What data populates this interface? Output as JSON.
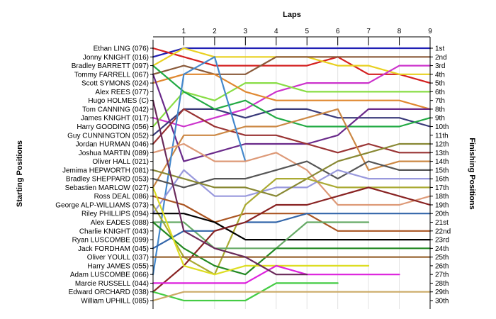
{
  "chart_data": {
    "type": "line",
    "title": "",
    "xlabel": "Laps",
    "ylabel_left": "Starting Positions",
    "ylabel_right": "Finishing Positions",
    "x": [
      0,
      1,
      2,
      3,
      4,
      5,
      6,
      7,
      8,
      9
    ],
    "x_tick_labels": [
      "1",
      "2",
      "3",
      "4",
      "5",
      "6",
      "7",
      "8",
      "9"
    ],
    "ylim": [
      1,
      30
    ],
    "y_inverted": true,
    "grid": true,
    "starting_labels": [
      "Ethan LING (076)",
      "Jonny KNIGHT (016)",
      "Bradley BARRETT (097)",
      "Tommy FARRELL (067)",
      "Scott SYMONS (024)",
      "Alex REES (077)",
      "Hugo HOLMES (C)",
      "Tom CANNING (042)",
      "James KNIGHT (017)",
      "Harry GOODING (056)",
      "Guy CUNNINGTON (052)",
      "Jordan HURMAN (046)",
      "Joshua MARTIN (089)",
      "Oliver HALL (021)",
      "Jemima HEPWORTH (081)",
      "Bradley SHEPPARD (053)",
      "Sebastien MARLOW (027)",
      "Ross DEAL (086)",
      "George ALP-WILLIAMS (073)",
      "Riley PHILLIPS (094)",
      "Alex EADES (088)",
      "Charlie KNIGHT (043)",
      "Ryan LUSCOMBE (099)",
      "Jack FORDHAM (045)",
      "Oliver YOULL (037)",
      "Harry JAMES (055)",
      "Adam LUSCOMBE (066)",
      "Marcie RUSSELL (044)",
      "Edward ORCHARD (038)",
      "William UPHILL (085)"
    ],
    "finishing_labels": [
      "1st",
      "2nd",
      "3rd",
      "4th",
      "5th",
      "6th",
      "7th",
      "8th",
      "9th",
      "10th",
      "11th",
      "12th",
      "13th",
      "14th",
      "15th",
      "16th",
      "17th",
      "18th",
      "19th",
      "20th",
      "21st",
      "22nd",
      "23rd",
      "24th",
      "25th",
      "26th",
      "27th",
      "28th",
      "29th",
      "30th"
    ],
    "series": [
      {
        "color": "#1f1fb4",
        "values": [
          2,
          1,
          1,
          1,
          1,
          1,
          1,
          1,
          1,
          1
        ]
      },
      {
        "color": "#d42020",
        "values": [
          1,
          2,
          3,
          3,
          3,
          3,
          2,
          4,
          4,
          5
        ]
      },
      {
        "color": "#e8d020",
        "values": [
          3,
          1,
          2,
          2,
          2,
          2,
          3,
          3,
          4,
          4
        ]
      },
      {
        "color": "#8a5a3a",
        "values": [
          4,
          3,
          4,
          4,
          2,
          2,
          2,
          2,
          2,
          2
        ]
      },
      {
        "color": "#cc33cc",
        "values": [
          9,
          10,
          9,
          8,
          6,
          5,
          5,
          5,
          3,
          3
        ]
      },
      {
        "color": "#88dd44",
        "values": [
          10,
          6,
          7,
          5,
          5,
          6,
          6,
          6,
          6,
          6
        ]
      },
      {
        "color": "#e08830",
        "values": [
          5,
          4,
          4,
          6,
          7,
          7,
          7,
          7,
          7,
          8
        ]
      },
      {
        "color": "#3a3a7a",
        "values": [
          11,
          8,
          8,
          9,
          8,
          8,
          9,
          9,
          9,
          10
        ]
      },
      {
        "color": "#22aa44",
        "values": [
          3,
          6,
          8,
          7,
          9,
          10,
          10,
          10,
          10,
          9
        ]
      },
      {
        "color": "#6a2a8a",
        "values": [
          4,
          14,
          13,
          12,
          12,
          12,
          11,
          8,
          8,
          8
        ]
      },
      {
        "color": "#993333",
        "values": [
          12,
          8,
          10,
          11,
          11,
          12,
          13,
          12,
          13,
          13
        ]
      },
      {
        "color": "#cc8844",
        "values": [
          17,
          11,
          11,
          10,
          10,
          9,
          8,
          15,
          14,
          14
        ]
      },
      {
        "color": "#4488cc",
        "values": [
          27,
          4,
          2,
          14,
          null,
          null,
          null,
          null,
          null,
          null
        ]
      },
      {
        "color": "#dd9977",
        "values": [
          13,
          12,
          14,
          14,
          13,
          15,
          19,
          19,
          19,
          18
        ]
      },
      {
        "color": "#555555",
        "values": [
          16,
          17,
          16,
          16,
          15,
          14,
          16,
          14,
          15,
          15
        ]
      },
      {
        "color": "#9999dd",
        "values": [
          20,
          15,
          18,
          18,
          17,
          17,
          15,
          16,
          16,
          16
        ]
      },
      {
        "color": "#888833",
        "values": [
          15,
          16,
          17,
          17,
          18,
          16,
          14,
          13,
          12,
          12
        ]
      },
      {
        "color": "#aa5522",
        "values": [
          18,
          19,
          21,
          20,
          20,
          20,
          22,
          22,
          22,
          22
        ]
      },
      {
        "color": "#aaaa33",
        "values": [
          19,
          25,
          27,
          19,
          16,
          16,
          17,
          17,
          17,
          17
        ]
      },
      {
        "color": "#000000",
        "values": [
          20,
          20,
          21,
          23,
          23,
          23,
          23,
          23,
          23,
          23
        ]
      },
      {
        "color": "#66aa66",
        "values": [
          21,
          21,
          24,
          24,
          24,
          21,
          21,
          21,
          null,
          null
        ]
      },
      {
        "color": "#3366aa",
        "values": [
          24,
          22,
          22,
          21,
          21,
          20,
          20,
          20,
          20,
          20
        ]
      },
      {
        "color": "#882222",
        "values": [
          29,
          26,
          22,
          21,
          19,
          19,
          18,
          17,
          18,
          19
        ]
      },
      {
        "color": "#228822",
        "values": [
          21,
          24,
          26,
          27,
          24,
          24,
          24,
          24,
          24,
          24
        ]
      },
      {
        "color": "#996633",
        "values": [
          25,
          25,
          25,
          25,
          25,
          25,
          25,
          25,
          25,
          25
        ]
      },
      {
        "color": "#dddd22",
        "values": [
          17,
          26,
          27,
          26,
          26,
          26,
          26,
          26,
          null,
          null
        ]
      },
      {
        "color": "#dd22dd",
        "values": [
          28,
          28,
          28,
          28,
          26,
          27,
          27,
          27,
          27,
          null
        ]
      },
      {
        "color": "#44cc44",
        "values": [
          29,
          30,
          30,
          30,
          28,
          28,
          28,
          null,
          null,
          null
        ]
      },
      {
        "color": "#6a2a5a",
        "values": [
          7,
          22,
          24,
          25,
          27,
          27,
          null,
          null,
          null,
          null
        ]
      },
      {
        "color": "#ccaa66",
        "values": [
          30,
          29,
          29,
          29,
          29,
          29,
          29,
          29,
          29,
          29
        ]
      }
    ]
  }
}
